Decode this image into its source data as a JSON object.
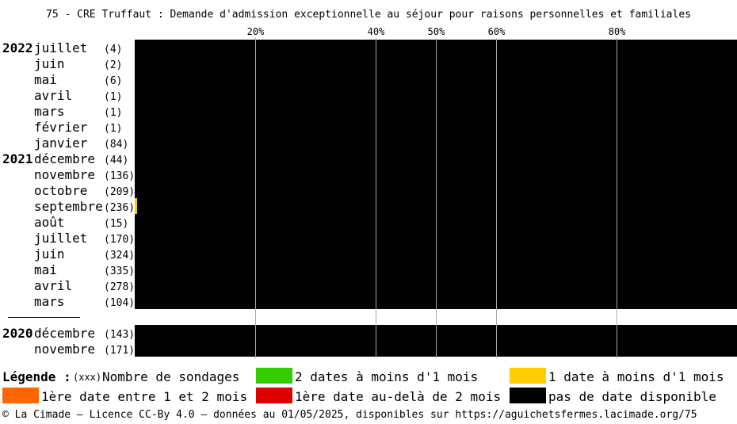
{
  "title": "75 - CRE Truffaut : Demande d'admission exceptionnelle au séjour pour raisons personnelles et familiales",
  "colors": {
    "two_dates": "#33cc00",
    "one_date": "#ffcc00",
    "first_1_2": "#ff6600",
    "first_gt2": "#dd0000",
    "none": "#000000",
    "grid": "#aaaaaa"
  },
  "chart_data": {
    "type": "bar",
    "orientation": "horizontal-stacked",
    "x_ticks": [
      20,
      40,
      50,
      60,
      80
    ],
    "x_tick_labels": [
      "20%",
      "40%",
      "50%",
      "60%",
      "80%"
    ],
    "xlim": [
      0,
      100
    ],
    "groups": [
      {
        "rows": [
          {
            "year": "2022",
            "month": "juillet",
            "count": "(4)",
            "one_date": 0,
            "none": 100
          },
          {
            "year": "",
            "month": "juin",
            "count": "(2)",
            "one_date": 0,
            "none": 100
          },
          {
            "year": "",
            "month": "mai",
            "count": "(6)",
            "one_date": 0,
            "none": 100
          },
          {
            "year": "",
            "month": "avril",
            "count": "(1)",
            "one_date": 0,
            "none": 100
          },
          {
            "year": "",
            "month": "mars",
            "count": "(1)",
            "one_date": 0,
            "none": 100
          },
          {
            "year": "",
            "month": "février",
            "count": "(1)",
            "one_date": 0,
            "none": 100
          },
          {
            "year": "",
            "month": "janvier",
            "count": "(84)",
            "one_date": 0,
            "none": 100
          },
          {
            "year": "2021",
            "month": "décembre",
            "count": "(44)",
            "one_date": 0,
            "none": 100
          },
          {
            "year": "",
            "month": "novembre",
            "count": "(136)",
            "one_date": 0,
            "none": 100
          },
          {
            "year": "",
            "month": "octobre",
            "count": "(209)",
            "one_date": 0,
            "none": 100
          },
          {
            "year": "",
            "month": "septembre",
            "count": "(236)",
            "one_date": 0.4,
            "none": 99.6
          },
          {
            "year": "",
            "month": "août",
            "count": "(15)",
            "one_date": 0,
            "none": 100
          },
          {
            "year": "",
            "month": "juillet",
            "count": "(170)",
            "one_date": 0,
            "none": 100
          },
          {
            "year": "",
            "month": "juin",
            "count": "(324)",
            "one_date": 0,
            "none": 100
          },
          {
            "year": "",
            "month": "mai",
            "count": "(335)",
            "one_date": 0,
            "none": 100
          },
          {
            "year": "",
            "month": "avril",
            "count": "(278)",
            "one_date": 0,
            "none": 100
          },
          {
            "year": "",
            "month": "mars",
            "count": "(104)",
            "one_date": 0,
            "none": 100
          }
        ]
      },
      {
        "rows": [
          {
            "year": "2020",
            "month": "décembre",
            "count": "(143)",
            "one_date": 0,
            "none": 100
          },
          {
            "year": "",
            "month": "novembre",
            "count": "(171)",
            "one_date": 0,
            "none": 100
          }
        ]
      }
    ]
  },
  "legend": {
    "heading": "Légende :",
    "xxx": "(xxx)",
    "count_label": "Nombre de sondages",
    "two_dates": "2 dates à moins d'1 mois",
    "one_date": "1 date à moins d'1 mois",
    "first_1_2": "1ère date entre 1 et 2 mois",
    "first_gt2": "1ère date au-delà de 2 mois",
    "none": "pas de date disponible"
  },
  "footer": "© La Cimade — Licence CC-By 4.0 — données au 01/05/2025, disponibles sur https://aguichetsfermes.lacimade.org/75"
}
